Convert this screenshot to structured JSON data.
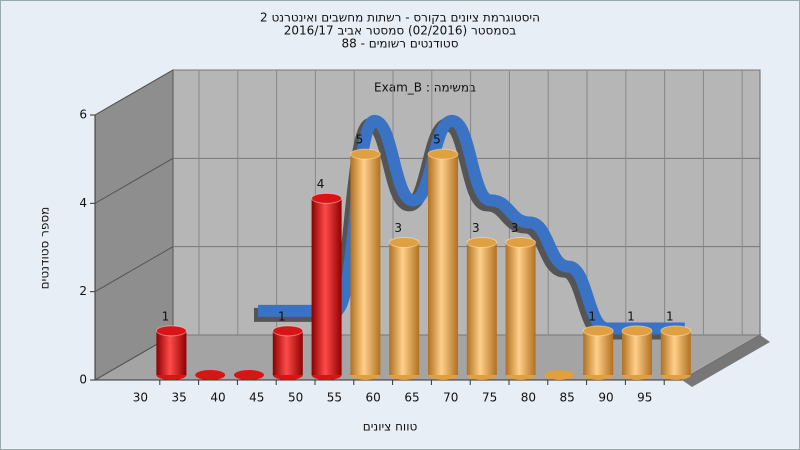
{
  "chart_data": {
    "type": "bar3d",
    "title_lines": [
      "היסטוגרמת ציונים בקורס - רשתות מחשבים ואינטרנט 2",
      "בסמסטר (02/2016) סמסטר אביב 2016/17",
      "סטודנטים רשומים - 88"
    ],
    "annotation": "במשימה : Exam_B",
    "x_label": "טווח ציונים",
    "y_label": "מספר סטודנטים",
    "categories": [
      "30",
      "35",
      "40",
      "45",
      "50",
      "55",
      "60",
      "65",
      "70",
      "75",
      "80",
      "85",
      "90",
      "95"
    ],
    "values": [
      1,
      0,
      0,
      1,
      4,
      5,
      3,
      5,
      3,
      3,
      0,
      1,
      1,
      1
    ],
    "colors": [
      "#d81414",
      "#d81414",
      "#d81414",
      "#d81414",
      "#d81414",
      "#e0a040",
      "#e0a040",
      "#e0a040",
      "#e0a040",
      "#e0a040",
      "#e0a040",
      "#e0a040",
      "#e0a040",
      "#e0a040"
    ],
    "trend": {
      "color": "#3a72c4",
      "values": [
        null,
        null,
        1,
        1,
        1,
        5.3,
        3.5,
        5.3,
        3.5,
        3,
        2,
        0.6,
        0.6,
        0.6
      ]
    },
    "ylim": [
      0,
      6
    ],
    "yticks": [
      0,
      2,
      4,
      6
    ],
    "grid": true
  }
}
